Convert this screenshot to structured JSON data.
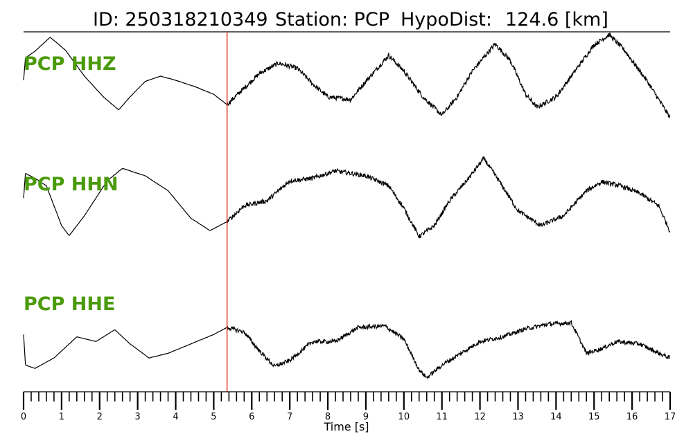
{
  "title": {
    "id_text": "ID: 250318210349",
    "station_text": "Station: PCP",
    "hypodist_text": "HypoDist:",
    "hypodist_value": "124.6 [km]"
  },
  "colors": {
    "channel_label": "#4a9a0a",
    "pick_line": "#e8453c",
    "trace": "#000000"
  },
  "chart_data": {
    "type": "line",
    "xlabel": "Time [s]",
    "xlim": [
      0,
      17
    ],
    "x_ticks": [
      "0",
      "1",
      "2",
      "3",
      "4",
      "5",
      "6",
      "7",
      "8",
      "9",
      "10",
      "11",
      "12",
      "13",
      "14",
      "15",
      "16",
      "17"
    ],
    "minor_tick_step": 0.2,
    "pick_time": 5.35,
    "series": [
      {
        "name": "PCP HHZ",
        "shape": [
          [
            0,
            0.12
          ],
          [
            0.05,
            0.55
          ],
          [
            0.3,
            0.68
          ],
          [
            0.7,
            0.95
          ],
          [
            1.1,
            0.7
          ],
          [
            1.6,
            0.2
          ],
          [
            2.1,
            -0.2
          ],
          [
            2.5,
            -0.45
          ],
          [
            2.8,
            -0.2
          ],
          [
            3.2,
            0.1
          ],
          [
            3.6,
            0.2
          ],
          [
            4.0,
            0.12
          ],
          [
            4.5,
            0.0
          ],
          [
            5.0,
            -0.15
          ],
          [
            5.35,
            -0.35
          ],
          [
            5.7,
            -0.1
          ],
          [
            6.2,
            0.25
          ],
          [
            6.7,
            0.45
          ],
          [
            7.2,
            0.35
          ],
          [
            7.6,
            0.05
          ],
          [
            8.0,
            -0.2
          ],
          [
            8.6,
            -0.25
          ],
          [
            9.0,
            0.1
          ],
          [
            9.6,
            0.6
          ],
          [
            10.0,
            0.3
          ],
          [
            10.5,
            -0.2
          ],
          [
            11.0,
            -0.55
          ],
          [
            11.4,
            -0.2
          ],
          [
            11.8,
            0.3
          ],
          [
            12.4,
            0.82
          ],
          [
            12.8,
            0.5
          ],
          [
            13.2,
            -0.15
          ],
          [
            13.5,
            -0.4
          ],
          [
            14.0,
            -0.2
          ],
          [
            14.5,
            0.3
          ],
          [
            15.0,
            0.8
          ],
          [
            15.4,
            1.0
          ],
          [
            15.8,
            0.7
          ],
          [
            16.4,
            0.1
          ],
          [
            17.0,
            -0.6
          ]
        ]
      },
      {
        "name": "PCP HHN",
        "shape": [
          [
            0,
            0.05
          ],
          [
            0.05,
            0.55
          ],
          [
            0.3,
            0.45
          ],
          [
            0.6,
            0.3
          ],
          [
            1.0,
            -0.5
          ],
          [
            1.2,
            -0.7
          ],
          [
            1.6,
            -0.3
          ],
          [
            2.2,
            0.4
          ],
          [
            2.6,
            0.65
          ],
          [
            3.2,
            0.5
          ],
          [
            3.8,
            0.2
          ],
          [
            4.4,
            -0.35
          ],
          [
            4.9,
            -0.6
          ],
          [
            5.35,
            -0.42
          ],
          [
            5.8,
            -0.1
          ],
          [
            6.4,
            0.0
          ],
          [
            7.0,
            0.4
          ],
          [
            7.6,
            0.45
          ],
          [
            8.2,
            0.6
          ],
          [
            9.0,
            0.5
          ],
          [
            9.6,
            0.3
          ],
          [
            10.0,
            -0.15
          ],
          [
            10.4,
            -0.72
          ],
          [
            10.8,
            -0.5
          ],
          [
            11.2,
            0.0
          ],
          [
            11.7,
            0.45
          ],
          [
            12.1,
            0.85
          ],
          [
            12.5,
            0.4
          ],
          [
            13.0,
            -0.2
          ],
          [
            13.6,
            -0.5
          ],
          [
            14.2,
            -0.3
          ],
          [
            14.8,
            0.2
          ],
          [
            15.2,
            0.38
          ],
          [
            15.7,
            0.3
          ],
          [
            16.2,
            0.15
          ],
          [
            16.7,
            -0.1
          ],
          [
            17.0,
            -0.62
          ]
        ]
      },
      {
        "name": "PCP HHE",
        "shape": [
          [
            0,
            0.1
          ],
          [
            0.05,
            -0.55
          ],
          [
            0.3,
            -0.62
          ],
          [
            0.8,
            -0.4
          ],
          [
            1.4,
            0.05
          ],
          [
            1.9,
            -0.05
          ],
          [
            2.4,
            0.2
          ],
          [
            2.8,
            -0.1
          ],
          [
            3.3,
            -0.4
          ],
          [
            3.8,
            -0.3
          ],
          [
            4.4,
            -0.1
          ],
          [
            5.0,
            0.1
          ],
          [
            5.35,
            0.25
          ],
          [
            5.8,
            0.15
          ],
          [
            6.2,
            -0.25
          ],
          [
            6.6,
            -0.58
          ],
          [
            7.0,
            -0.45
          ],
          [
            7.6,
            -0.05
          ],
          [
            8.2,
            -0.05
          ],
          [
            8.8,
            0.25
          ],
          [
            9.5,
            0.28
          ],
          [
            10.0,
            0.0
          ],
          [
            10.4,
            -0.65
          ],
          [
            10.6,
            -0.82
          ],
          [
            11.0,
            -0.55
          ],
          [
            11.5,
            -0.3
          ],
          [
            12.0,
            -0.05
          ],
          [
            12.6,
            0.05
          ],
          [
            13.2,
            0.22
          ],
          [
            13.8,
            0.32
          ],
          [
            14.4,
            0.35
          ],
          [
            14.8,
            -0.3
          ],
          [
            15.2,
            -0.2
          ],
          [
            15.6,
            -0.05
          ],
          [
            16.2,
            -0.1
          ],
          [
            16.7,
            -0.3
          ],
          [
            17.0,
            -0.4
          ]
        ]
      }
    ]
  }
}
